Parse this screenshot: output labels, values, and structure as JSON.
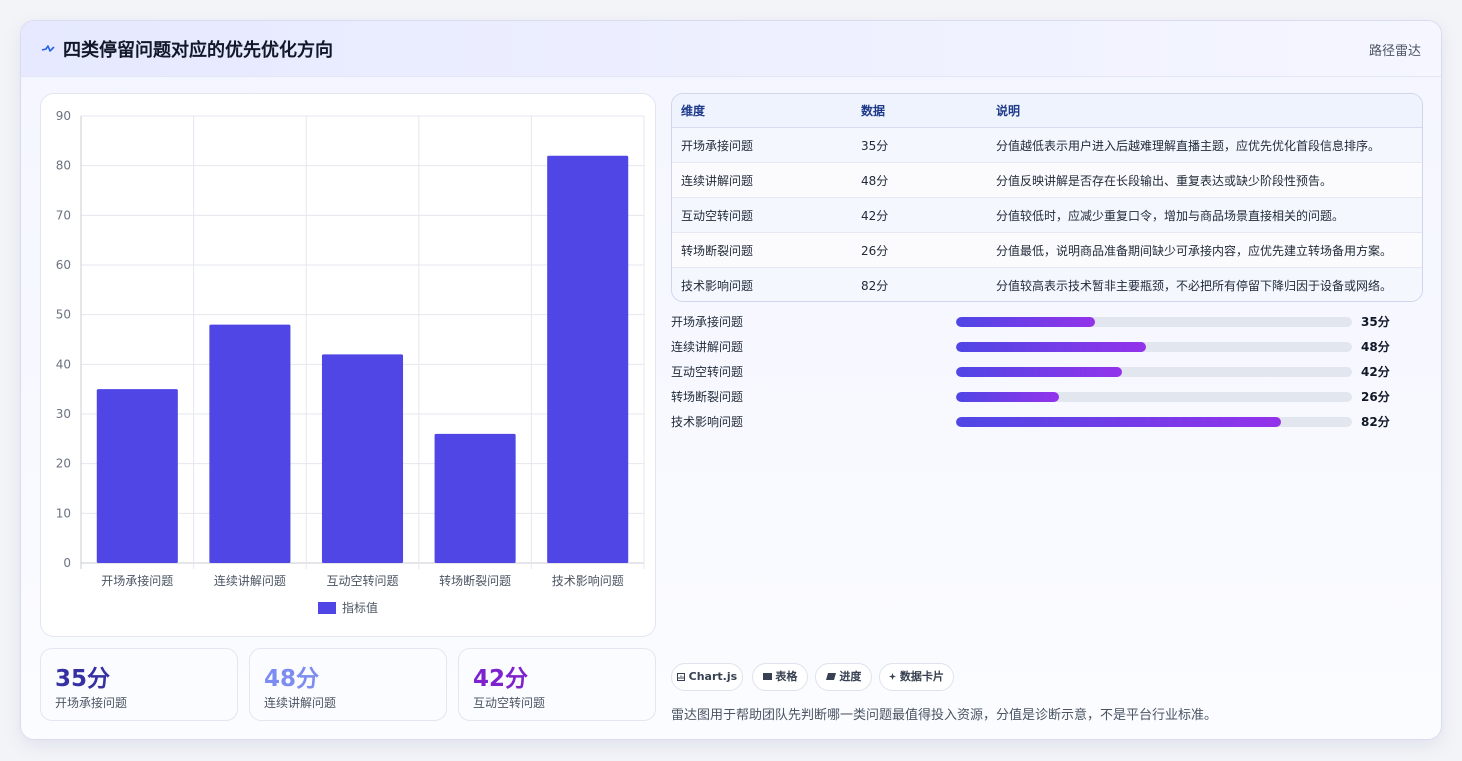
{
  "header": {
    "title": "四类停留问题对应的优先优化方向",
    "badge": "路径雷达"
  },
  "chart_data": {
    "type": "bar",
    "categories": [
      "开场承接问题",
      "连续讲解问题",
      "互动空转问题",
      "转场断裂问题",
      "技术影响问题"
    ],
    "series": [
      {
        "name": "指标值",
        "values": [
          35,
          48,
          42,
          26,
          82
        ]
      }
    ],
    "ylim": [
      0,
      90
    ],
    "yticks": [
      0,
      10,
      20,
      30,
      40,
      50,
      60,
      70,
      80,
      90
    ],
    "grid": true,
    "legend": "bottom",
    "bar_color": "#4f46e5"
  },
  "stats": [
    {
      "value": "35分",
      "label": "开场承接问题",
      "color": "#3730a3"
    },
    {
      "value": "48分",
      "label": "连续讲解问题",
      "color": "#7c8cf0"
    },
    {
      "value": "42分",
      "label": "互动空转问题",
      "color": "#7e22ce"
    }
  ],
  "table": {
    "headers": [
      "维度",
      "数据",
      "说明"
    ],
    "rows": [
      {
        "dimension": "开场承接问题",
        "data": "35分",
        "note": "分值越低表示用户进入后越难理解直播主题，应优先优化首段信息排序。"
      },
      {
        "dimension": "连续讲解问题",
        "data": "48分",
        "note": "分值反映讲解是否存在长段输出、重复表达或缺少阶段性预告。"
      },
      {
        "dimension": "互动空转问题",
        "data": "42分",
        "note": "分值较低时，应减少重复口令，增加与商品场景直接相关的问题。"
      },
      {
        "dimension": "转场断裂问题",
        "data": "26分",
        "note": "分值最低，说明商品准备期间缺少可承接内容，应优先建立转场备用方案。"
      },
      {
        "dimension": "技术影响问题",
        "data": "82分",
        "note": "分值较高表示技术暂非主要瓶颈，不必把所有停留下降归因于设备或网络。"
      }
    ]
  },
  "progress": [
    {
      "label": "开场承接问题",
      "value": 35,
      "max": 100,
      "text": "35分"
    },
    {
      "label": "连续讲解问题",
      "value": 48,
      "max": 100,
      "text": "48分"
    },
    {
      "label": "互动空转问题",
      "value": 42,
      "max": 100,
      "text": "42分"
    },
    {
      "label": "转场断裂问题",
      "value": 26,
      "max": 100,
      "text": "26分"
    },
    {
      "label": "技术影响问题",
      "value": 82,
      "max": 100,
      "text": "82分"
    }
  ],
  "tags": [
    {
      "label": "Chart.js",
      "icon": "chart-icon"
    },
    {
      "label": "表格",
      "icon": "table-icon"
    },
    {
      "label": "进度",
      "icon": "progress-icon"
    },
    {
      "label": "数据卡片",
      "icon": "sparkle-icon"
    }
  ],
  "footer": {
    "note": "雷达图用于帮助团队先判断哪一类问题最值得投入资源，分值是诊断示意，不是平台行业标准。"
  }
}
